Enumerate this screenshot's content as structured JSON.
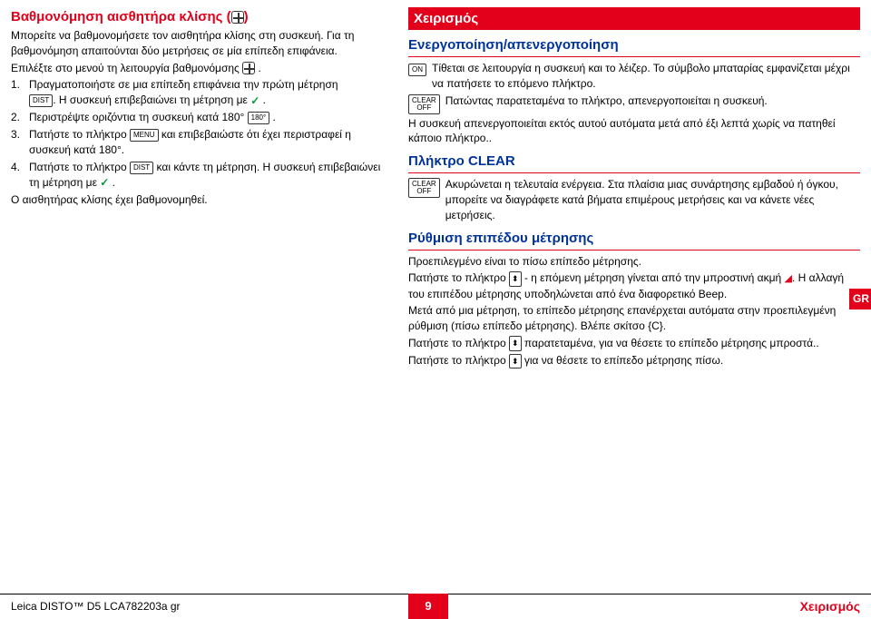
{
  "left": {
    "title_part1": "Βαθμονόμηση αισθητήρα κλίσης (",
    "title_part2": ")",
    "intro": "Μπορείτε να βαθμονομήσετε τον αισθητήρα κλίσης στη συσκευή. Για τη βαθμονόμηση απαιτούνται δύο μετρήσεις σε μία επίπεδη επιφάνεια.",
    "select_menu": "Επιλέξτε στο μενού τη λειτουργία βαθμονόμσης",
    "n1": "1.",
    "step1a": "Πραγματοποιήστε σε μια επίπεδη επιφάνεια την πρώτη μέτρηση",
    "step1b": ". Η συσκευή επιβεβαιώνει τη μέτρηση με ",
    "n2": "2.",
    "step2": "Περιστρέψτε οριζόντια τη συσκευή κατά 180° ",
    "n3": "3.",
    "step3a": "Πατήστε το πλήκτρο ",
    "step3b": " και επιβεβαιώστε ότι έχει περιστραφεί η συσκευή κατά 180°.",
    "n4": "4.",
    "step4a": "Πατήστε το πλήκτρο ",
    "step4b": " και κάντε τη μέτρηση. Η συσκευή επιβεβαιώνει τη μέτρηση με ",
    "final": "Ο αισθητήρας κλίσης έχει βαθμονομηθεί.",
    "dist_icon": "DIST",
    "menu_icon": "MENU",
    "rotate_icon": "180°"
  },
  "right": {
    "main_heading": "Χειρισμός",
    "onoff_heading": "Ενεργοποίηση/απενεργοποίηση",
    "on_text": "Τίθεται σε λειτουργία η συσκευή και το λέιζερ. Το σύμβολο μπαταρίας εμφανίζεται μέχρι να πατήσετε το επόμενο πλήκτρο.",
    "off_text": "Πατώντας παρατεταμένα το πλήκτρο, απενεργοποιείται η συσκευή.",
    "auto_off": "Η συσκευή απενεργοποιείται εκτός αυτού αυτόματα μετά από έξι λεπτά χωρίς να πατηθεί κάποιο πλήκτρο..",
    "clear_heading": "Πλήκτρο CLEAR",
    "clear_text": "Ακυρώνεται η τελευταία ενέργεια. Στα πλαίσια μιας συνάρτησης εμβαδού ή όγκου, μπορείτε να διαγράφετε κατά βήματα επιμέρους μετρήσεις και να κάνετε νέες μετρήσεις.",
    "ref_heading": "Ρύθμιση επιπέδου μέτρησης",
    "ref1": "Προεπιλεγμένο είναι το πίσω επίπεδο μέτρησης.",
    "ref2a": "Πατήστε το πλήκτρο ",
    "ref2b": " - η επόμενη μέτρηση γίνεται από την μπροστινή ακμή ",
    "ref2c": ". Η αλλαγή του επιπέδου μέτρησης υποδηλώνεται από ένα διαφορετικό Beep.",
    "ref3": "Μετά από μια μέτρηση, το επίπεδο μέτρησης επανέρχεται αυτόματα στην προεπιλεγμένη ρύθμιση (πίσω επίπεδο μέτρησης). Βλέπε σκίτσο {C}.",
    "ref4a": "Πατήστε το πλήκτρο ",
    "ref4b": " παρατεταμένα, για να θέσετε το επίπεδο μέτρησης μπροστά..",
    "ref5a": "Πατήστε το πλήκτρο ",
    "ref5b": " για να θέσετε το επίπεδο μέτρησης πίσω.",
    "on_icon": "ON",
    "clear_icon": "CLEAR\nOFF"
  },
  "side_tab": "GR",
  "footer": {
    "left": "Leica DISTO™ D5 LCA782203a gr",
    "page": "9",
    "right": "Χειρισμός"
  }
}
